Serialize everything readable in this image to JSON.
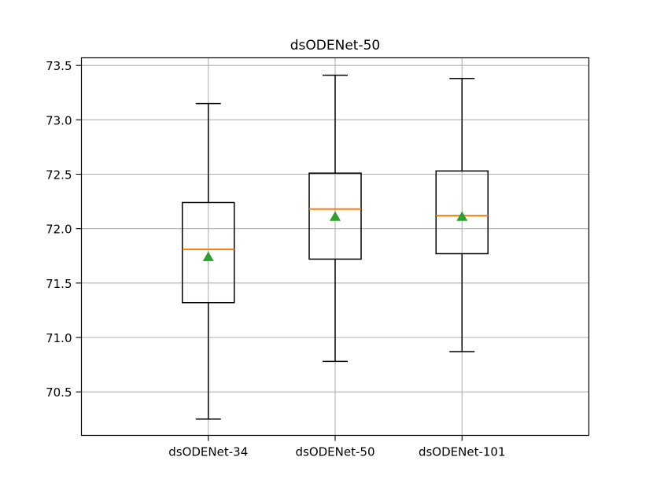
{
  "chart_data": {
    "type": "box",
    "title": "dsODENet-50",
    "xlabel": "",
    "ylabel": "",
    "ylim": [
      70.1,
      73.57
    ],
    "yticks": [
      70.5,
      71.0,
      71.5,
      72.0,
      72.5,
      73.0,
      73.5
    ],
    "ytick_labels": [
      "70.5",
      "71.0",
      "71.5",
      "72.0",
      "72.5",
      "73.0",
      "73.5"
    ],
    "grid": true,
    "categories": [
      "dsODENet-34",
      "dsODENet-50",
      "dsODENet-101"
    ],
    "boxes": [
      {
        "label": "dsODENet-34",
        "whisker_low": 70.25,
        "q1": 71.32,
        "median": 71.81,
        "q3": 72.24,
        "whisker_high": 73.15,
        "mean": 71.74
      },
      {
        "label": "dsODENet-50",
        "whisker_low": 70.78,
        "q1": 71.72,
        "median": 72.18,
        "q3": 72.51,
        "whisker_high": 73.41,
        "mean": 72.11
      },
      {
        "label": "dsODENet-101",
        "whisker_low": 70.87,
        "q1": 71.77,
        "median": 72.12,
        "q3": 72.53,
        "whisker_high": 73.38,
        "mean": 72.11
      }
    ],
    "colors": {
      "box": "#000000",
      "median": "#ff7f0e",
      "mean": "#2ca02c",
      "grid": "#b0b0b0"
    }
  }
}
